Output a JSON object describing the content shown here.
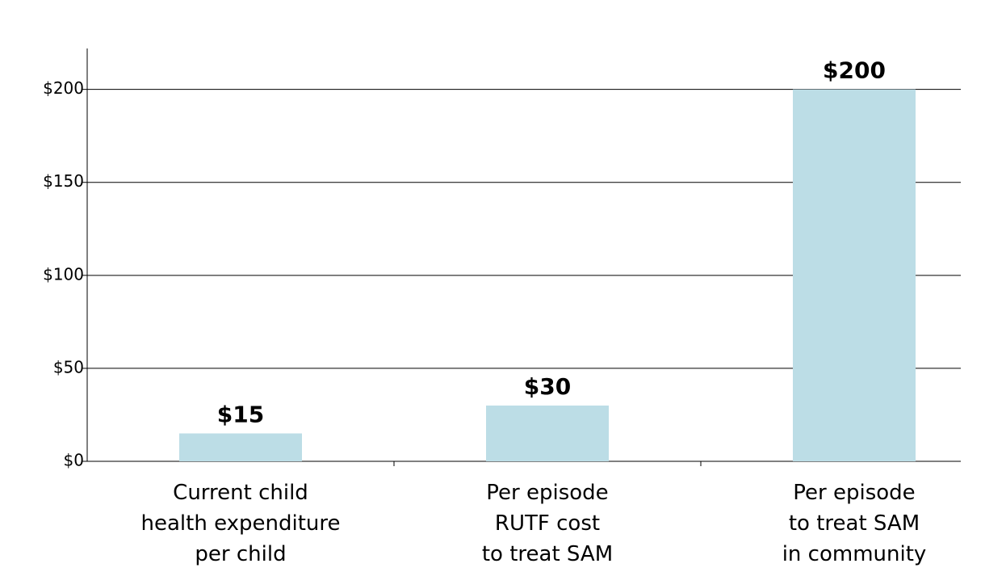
{
  "chart_data": {
    "type": "bar",
    "categories": [
      "Current child\nhealth expenditure\nper child",
      "Per episode\nRUTF cost\nto treat SAM",
      "Per episode\nto treat SAM\nin community"
    ],
    "values": [
      15,
      30,
      200
    ],
    "value_labels": [
      "$15",
      "$30",
      "$200"
    ],
    "color": "#bcdde6",
    "ylim": [
      0,
      222
    ],
    "yticks": [
      {
        "value": 0,
        "label": "$0"
      },
      {
        "value": 50,
        "label": "$50"
      },
      {
        "value": 100,
        "label": "$100"
      },
      {
        "value": 150,
        "label": "$150"
      },
      {
        "value": 200,
        "label": "$200"
      }
    ],
    "grid": true
  }
}
